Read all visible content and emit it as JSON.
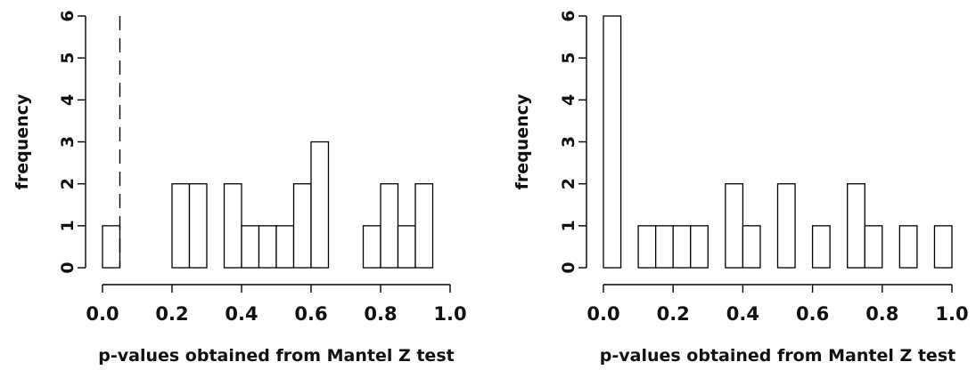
{
  "chart_data": [
    {
      "type": "bar",
      "subtype": "histogram",
      "bin_width": 0.05,
      "bins_start": [
        0.0,
        0.05,
        0.1,
        0.15,
        0.2,
        0.25,
        0.3,
        0.35,
        0.4,
        0.45,
        0.5,
        0.55,
        0.6,
        0.65,
        0.7,
        0.75,
        0.8,
        0.85,
        0.9
      ],
      "values": [
        1,
        0,
        0,
        0,
        2,
        2,
        0,
        2,
        1,
        1,
        1,
        2,
        3,
        0,
        0,
        1,
        2,
        1,
        2
      ],
      "xlabel": "p-values obtained from Mantel Z test",
      "ylabel": "frequency",
      "xticks": [
        "0.0",
        "0.2",
        "0.4",
        "0.6",
        "0.8",
        "1.0"
      ],
      "yticks": [
        "0",
        "1",
        "2",
        "3",
        "4",
        "5",
        "6"
      ],
      "xlim": [
        0,
        1
      ],
      "ylim": [
        0,
        6
      ],
      "reference_line": {
        "x": 0.05,
        "style": "dashed"
      },
      "grid": false
    },
    {
      "type": "bar",
      "subtype": "histogram",
      "bin_width": 0.05,
      "bins_start": [
        0.0,
        0.05,
        0.1,
        0.15,
        0.2,
        0.25,
        0.3,
        0.35,
        0.4,
        0.45,
        0.5,
        0.55,
        0.6,
        0.65,
        0.7,
        0.75,
        0.8,
        0.85,
        0.9,
        0.95
      ],
      "values": [
        6,
        0,
        1,
        1,
        1,
        1,
        0,
        2,
        1,
        0,
        2,
        0,
        1,
        0,
        2,
        1,
        0,
        1,
        0,
        1
      ],
      "xlabel": "p-values obtained from Mantel Z test",
      "ylabel": "frequency",
      "xticks": [
        "0.0",
        "0.2",
        "0.4",
        "0.6",
        "0.8",
        "1.0"
      ],
      "yticks": [
        "0",
        "1",
        "2",
        "3",
        "4",
        "5",
        "6"
      ],
      "xlim": [
        0,
        1
      ],
      "ylim": [
        0,
        6
      ],
      "grid": false
    }
  ]
}
